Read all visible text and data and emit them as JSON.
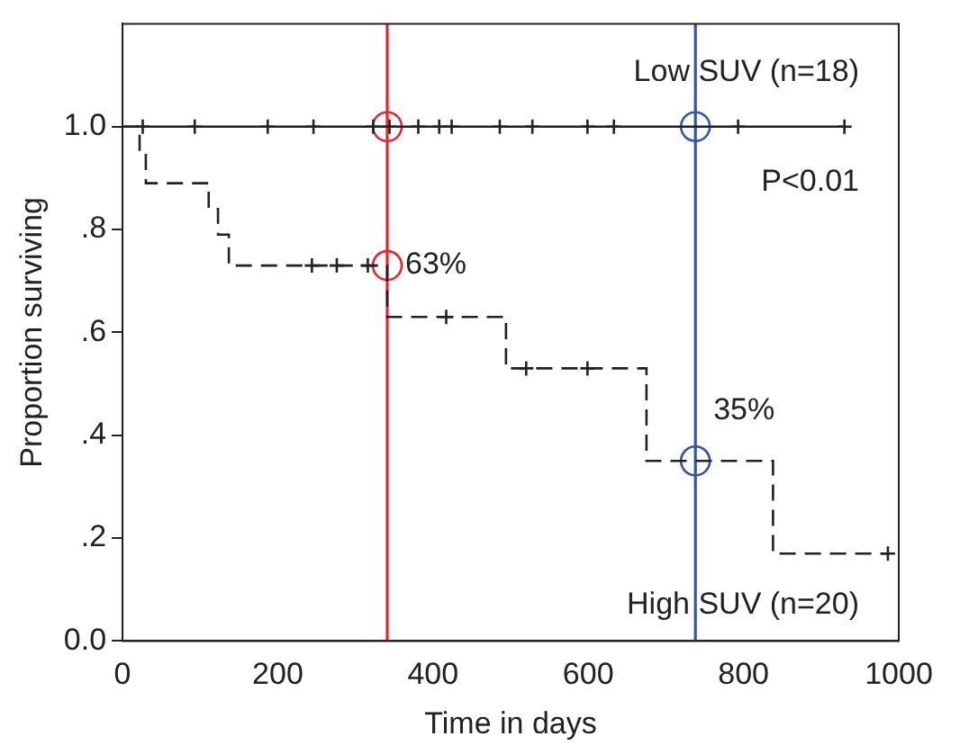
{
  "chart_data": {
    "type": "step",
    "xlabel": "Time in days",
    "ylabel": "Proportion surviving",
    "xlim": [
      0,
      1000
    ],
    "xticks": [
      0,
      200,
      400,
      600,
      800,
      1000
    ],
    "ylim": [
      0,
      1.2
    ],
    "yticks": [
      {
        "value": 0,
        "label": "0.0"
      },
      {
        "value": 0.2,
        "label": ".2"
      },
      {
        "value": 0.4,
        "label": ".4"
      },
      {
        "value": 0.6,
        "label": ".6"
      },
      {
        "value": 0.8,
        "label": ".8"
      },
      {
        "value": 1.0,
        "label": "1.0"
      }
    ],
    "grid": false,
    "legend": false,
    "series": [
      {
        "name": "Low SUV (n=18)",
        "color": "#222222",
        "line_style": "solid",
        "x": [
          0,
          930
        ],
        "values": [
          1,
          1
        ]
      },
      {
        "name": "High SUV (n=20)",
        "color": "#222222",
        "line_style": "dashed",
        "x": [
          0,
          22,
          30,
          111,
          123,
          137,
          341,
          494,
          675,
          838,
          986
        ],
        "values": [
          1,
          0.95,
          0.89,
          0.84,
          0.79,
          0.73,
          0.63,
          0.53,
          0.35,
          0.17,
          0.17
        ]
      },
      {
        "type": "scatter",
        "marker": "cross",
        "color": "#222222",
        "x": [
          26,
          93,
          187,
          246,
          323,
          344,
          381,
          408,
          424,
          486,
          528,
          599,
          633,
          793,
          930
        ],
        "values": [
          1,
          1,
          1,
          1,
          1,
          1,
          1,
          1,
          1,
          1,
          1,
          1,
          1,
          1,
          1
        ]
      },
      {
        "type": "scatter",
        "marker": "cross",
        "color": "#222222",
        "x": [
          244,
          276,
          316,
          417,
          520,
          599,
          986
        ],
        "values": [
          0.73,
          0.73,
          0.73,
          0.63,
          0.53,
          0.53,
          0.17
        ]
      },
      {
        "type": "scatter",
        "marker": "circle",
        "color": "#e8262e",
        "x": [
          341,
          341
        ],
        "values": [
          1,
          0.73
        ]
      },
      {
        "type": "scatter",
        "marker": "circle",
        "color": "#3355aa",
        "x": [
          738,
          738
        ],
        "values": [
          1,
          0.35
        ]
      }
    ],
    "ref_lines": [
      {
        "axis": "x",
        "value": 341,
        "color": "#e8262e"
      },
      {
        "axis": "x",
        "value": 738,
        "color": "#3355aa"
      }
    ],
    "annotations": [
      {
        "text": "63%",
        "x": 341,
        "y": 0.73
      },
      {
        "text": "35%",
        "x": 738,
        "y": 0.35
      },
      "P<0.01"
    ]
  }
}
